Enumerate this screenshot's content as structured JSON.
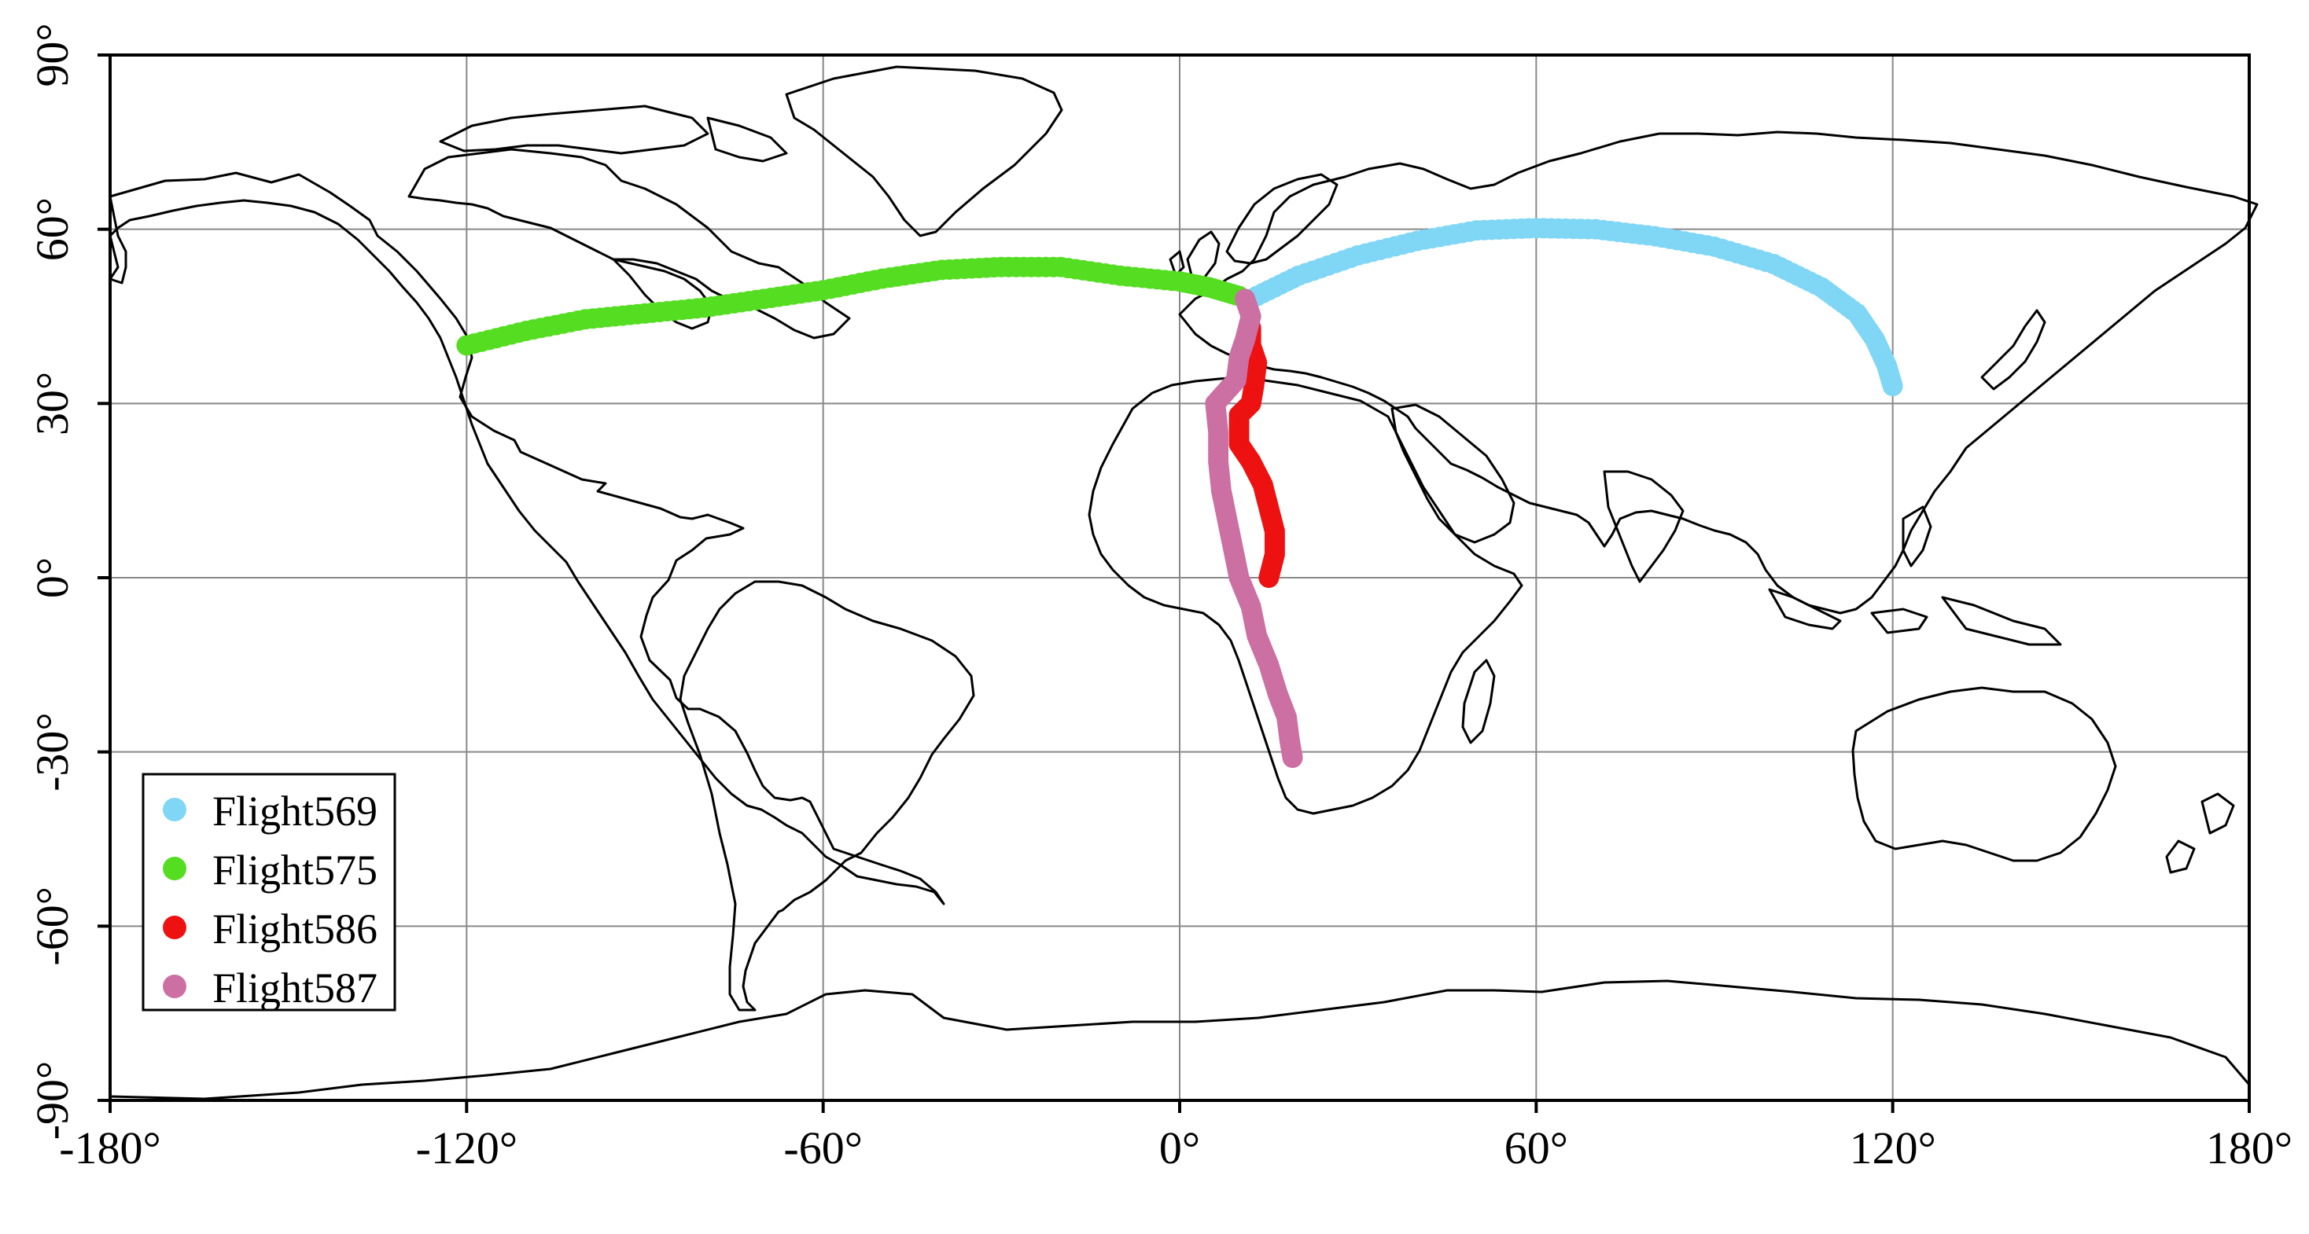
{
  "x_axis": {
    "ticks": [
      {
        "value": -180,
        "label": "-180°"
      },
      {
        "value": -120,
        "label": "-120°"
      },
      {
        "value": -60,
        "label": "-60°"
      },
      {
        "value": 0,
        "label": "0°"
      },
      {
        "value": 60,
        "label": "60°"
      },
      {
        "value": 120,
        "label": "120°"
      },
      {
        "value": 180,
        "label": "180°"
      }
    ]
  },
  "y_axis": {
    "ticks": [
      {
        "value": 90,
        "label": "90°"
      },
      {
        "value": 60,
        "label": "60°"
      },
      {
        "value": 30,
        "label": "30°"
      },
      {
        "value": 0,
        "label": "0°"
      },
      {
        "value": -30,
        "label": "-30°"
      },
      {
        "value": -60,
        "label": "-60°"
      },
      {
        "value": -90,
        "label": "-90°"
      }
    ]
  },
  "grid": true,
  "legend": {
    "position": "bottom-left",
    "entries": [
      {
        "label": "Flight569",
        "color": "#7fd6f5"
      },
      {
        "label": "Flight575",
        "color": "#55dd22"
      },
      {
        "label": "Flight586",
        "color": "#ee1111"
      },
      {
        "label": "Flight587",
        "color": "#cc6fa2"
      }
    ]
  },
  "chart_data": {
    "type": "scatter",
    "xlim": [
      -180,
      180
    ],
    "ylim": [
      -90,
      90
    ],
    "grid": true,
    "legend_position": "bottom-left",
    "series": [
      {
        "name": "Flight569",
        "color": "#7fd6f5",
        "points": [
          [
            12,
            48
          ],
          [
            20,
            52
          ],
          [
            30,
            55.5
          ],
          [
            40,
            58
          ],
          [
            50,
            59.8
          ],
          [
            60,
            60.2
          ],
          [
            70,
            60
          ],
          [
            80,
            58.8
          ],
          [
            90,
            57
          ],
          [
            100,
            54
          ],
          [
            108,
            50
          ],
          [
            114,
            45.5
          ],
          [
            117,
            41
          ],
          [
            119,
            36.5
          ],
          [
            120,
            33
          ]
        ]
      },
      {
        "name": "Flight575",
        "color": "#55dd22",
        "points": [
          [
            -120,
            40
          ],
          [
            -110,
            42.5
          ],
          [
            -100,
            44.5
          ],
          [
            -90,
            45.5
          ],
          [
            -80,
            46.5
          ],
          [
            -70,
            48
          ],
          [
            -60,
            49.5
          ],
          [
            -50,
            51.5
          ],
          [
            -40,
            53
          ],
          [
            -30,
            53.5
          ],
          [
            -20,
            53.5
          ],
          [
            -10,
            52
          ],
          [
            0,
            51
          ],
          [
            5,
            50
          ],
          [
            10,
            48.5
          ]
        ]
      },
      {
        "name": "Flight586",
        "color": "#ee1111",
        "points": [
          [
            12,
            43
          ],
          [
            12,
            40
          ],
          [
            13,
            37
          ],
          [
            12.5,
            33
          ],
          [
            12,
            30
          ],
          [
            10,
            28
          ],
          [
            10,
            23
          ],
          [
            12,
            20
          ],
          [
            14,
            16
          ],
          [
            15,
            12
          ],
          [
            16,
            8
          ],
          [
            16,
            4
          ],
          [
            15,
            0
          ]
        ]
      },
      {
        "name": "Flight587",
        "color": "#cc6fa2",
        "points": [
          [
            11,
            48
          ],
          [
            12,
            45
          ],
          [
            11,
            41
          ],
          [
            10,
            38
          ],
          [
            9.5,
            34
          ],
          [
            6,
            30
          ],
          [
            6.5,
            25
          ],
          [
            6.5,
            20
          ],
          [
            7,
            15
          ],
          [
            8,
            10
          ],
          [
            9,
            5
          ],
          [
            10,
            0
          ],
          [
            12,
            -5
          ],
          [
            13,
            -10
          ],
          [
            15,
            -15
          ],
          [
            16.5,
            -20
          ],
          [
            18,
            -24
          ],
          [
            18.5,
            -28
          ],
          [
            19,
            -31
          ]
        ]
      }
    ]
  }
}
